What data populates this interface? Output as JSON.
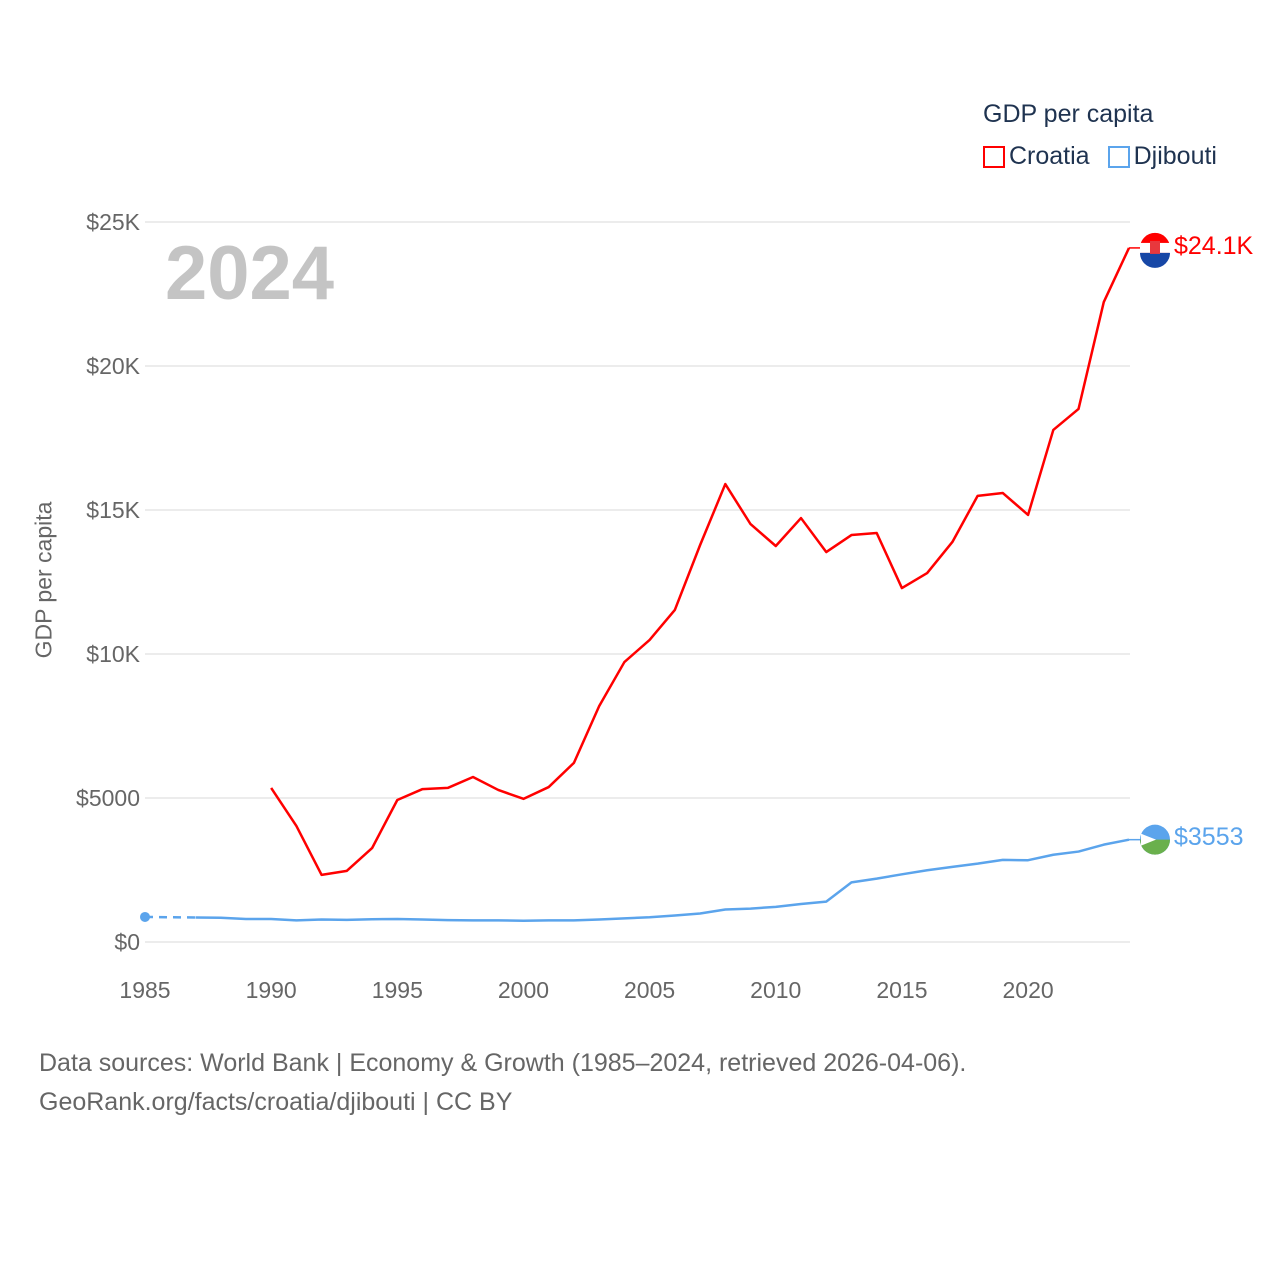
{
  "chart_data": {
    "type": "line",
    "title": "GDP per capita",
    "ylabel": "GDP per capita",
    "xlabel": "",
    "year_overlay": "2024",
    "xlim": [
      1985,
      2024
    ],
    "ylim": [
      0,
      25000
    ],
    "x_ticks": [
      "1985",
      "1990",
      "1995",
      "2000",
      "2005",
      "2010",
      "2015",
      "2020"
    ],
    "y_ticks": [
      {
        "value": 0,
        "label": "$0"
      },
      {
        "value": 5000,
        "label": "$5000"
      },
      {
        "value": 10000,
        "label": "$10K"
      },
      {
        "value": 15000,
        "label": "$15K"
      },
      {
        "value": 20000,
        "label": "$20K"
      },
      {
        "value": 25000,
        "label": "$25K"
      }
    ],
    "grid": true,
    "legend_placement": "top-right",
    "x": [
      1985,
      1986,
      1987,
      1988,
      1989,
      1990,
      1991,
      1992,
      1993,
      1994,
      1995,
      1996,
      1997,
      1998,
      1999,
      2000,
      2001,
      2002,
      2003,
      2004,
      2005,
      2006,
      2007,
      2008,
      2009,
      2010,
      2011,
      2012,
      2013,
      2014,
      2015,
      2016,
      2017,
      2018,
      2019,
      2020,
      2021,
      2022,
      2023,
      2024
    ],
    "series": [
      {
        "name": "Croatia",
        "color": "#ff0000",
        "end_label": "$24.1K",
        "values": [
          null,
          null,
          null,
          null,
          null,
          5350,
          4030,
          2330,
          2470,
          3260,
          4930,
          5310,
          5350,
          5730,
          5280,
          4970,
          5380,
          6220,
          8190,
          9720,
          10490,
          11530,
          13780,
          15900,
          14510,
          13750,
          14720,
          13540,
          14130,
          14200,
          12290,
          12810,
          13890,
          15490,
          15590,
          14830,
          17780,
          18510,
          22220,
          24100
        ]
      },
      {
        "name": "Djibouti",
        "color": "#5ba4ec",
        "end_label": "$3553",
        "values": [
          870,
          null,
          850,
          840,
          800,
          800,
          750,
          780,
          770,
          790,
          800,
          780,
          760,
          750,
          750,
          740,
          750,
          750,
          780,
          820,
          860,
          920,
          990,
          1130,
          1160,
          1220,
          1320,
          1400,
          2070,
          2200,
          2350,
          2490,
          2610,
          2720,
          2850,
          2840,
          3030,
          3140,
          3380,
          3553
        ]
      }
    ]
  },
  "footer": {
    "line1": "Data sources: World Bank | Economy & Growth (1985–2024, retrieved 2026-04-06).",
    "line2": "GeoRank.org/facts/croatia/djibouti | CC BY"
  }
}
